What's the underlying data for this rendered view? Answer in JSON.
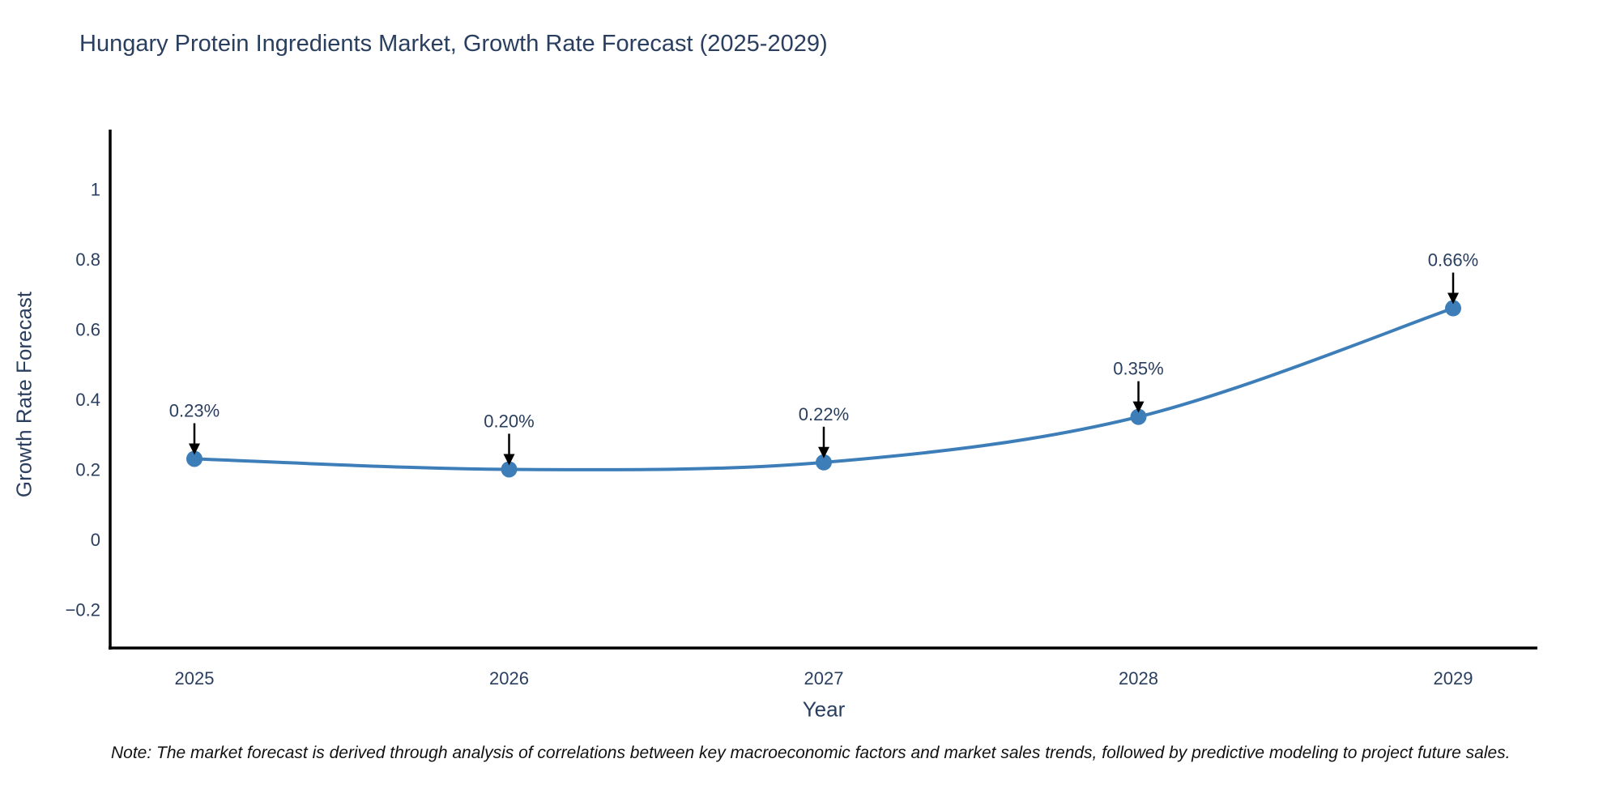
{
  "page": {
    "background": "#ffffff"
  },
  "chart": {
    "note": "Note: The market forecast is derived through analysis of correlations between key macroeconomic factors and market sales trends, followed by predictive modeling to project future sales."
  },
  "chart_data": {
    "type": "line",
    "categories": [
      "2025",
      "2026",
      "2027",
      "2028",
      "2029"
    ],
    "values": [
      0.23,
      0.2,
      0.22,
      0.35,
      0.66
    ],
    "point_labels": [
      "0.23%",
      "0.20%",
      "0.22%",
      "0.35%",
      "0.66%"
    ],
    "title": "Hungary Protein Ingredients Market, Growth Rate Forecast (2025-2029)",
    "xlabel": "Year",
    "ylabel": "Growth Rate Forecast",
    "yticks": [
      1,
      0.8,
      0.6,
      0.4,
      0.2,
      0,
      -0.2
    ],
    "ytick_labels": [
      "1",
      "0.8",
      "0.6",
      "0.4",
      "0.2",
      "0",
      "−0.2"
    ],
    "ylim": [
      -0.31,
      1.17
    ],
    "grid": false,
    "legend": "none",
    "line_shape": "spline",
    "line_color": "#3d7eb8",
    "marker_color": "#3d7eb8",
    "axis_color": "#000000",
    "text_color": "#2a3f5f",
    "annotation_arrow_color": "#000000"
  }
}
